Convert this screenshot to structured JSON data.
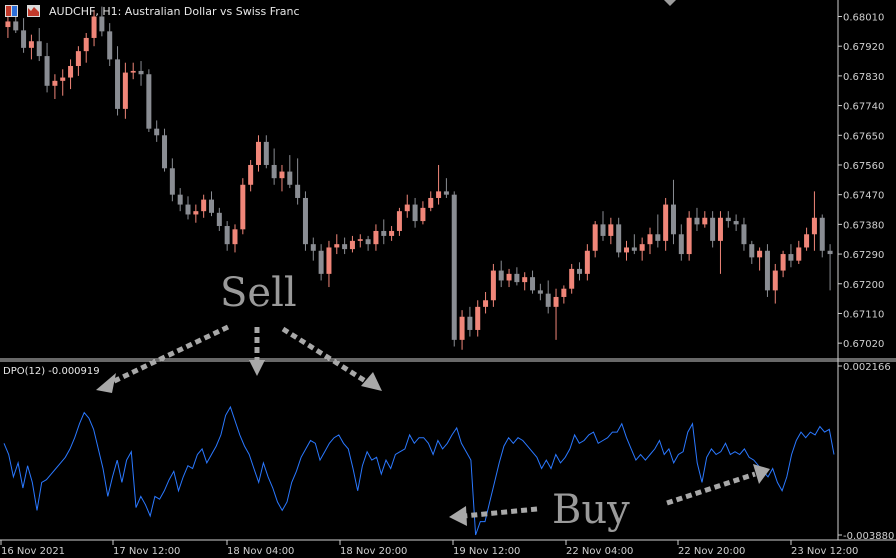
{
  "chart_title": "AUDCHF, H1:  Australian Dollar vs Swiss  Franc",
  "indicator_label": "DPO(12) -0.000919",
  "icons": [
    "one-click-trading-icon",
    "market-watch-icon",
    "arrow-down-icon"
  ],
  "colors": {
    "background": "#000000",
    "bull": "#f08679",
    "bear": "#8a8d93",
    "dpo_line": "#2a78ff",
    "axis": "#c9c9c9",
    "annotation": "#a8a8a8"
  },
  "annotations": {
    "sell": "Sell",
    "buy": "Buy"
  },
  "chart_data": [
    {
      "type": "candlestick",
      "symbol": "AUDCHF",
      "timeframe": "H1",
      "yticks": [
        "0.68010",
        "0.67920",
        "0.67830",
        "0.67740",
        "0.67650",
        "0.67560",
        "0.67470",
        "0.67380",
        "0.67290",
        "0.67200",
        "0.67110",
        "0.67020"
      ],
      "ylim": [
        0.66975,
        0.6806
      ],
      "bull_color": "#f08679",
      "bear_color": "#8a8d93",
      "candles": [
        [
          0.67978,
          0.68018,
          0.67945,
          0.67995
        ],
        [
          0.67995,
          0.68035,
          0.6796,
          0.67968
        ],
        [
          0.67968,
          0.68005,
          0.679,
          0.67915
        ],
        [
          0.67915,
          0.67955,
          0.6788,
          0.67935
        ],
        [
          0.67935,
          0.67975,
          0.67875,
          0.6789
        ],
        [
          0.6789,
          0.6793,
          0.6778,
          0.678
        ],
        [
          0.678,
          0.67835,
          0.6776,
          0.67815
        ],
        [
          0.67815,
          0.6785,
          0.6777,
          0.67825
        ],
        [
          0.67825,
          0.6788,
          0.6779,
          0.6786
        ],
        [
          0.6786,
          0.6792,
          0.6783,
          0.67905
        ],
        [
          0.67905,
          0.6796,
          0.6787,
          0.67945
        ],
        [
          0.67945,
          0.6803,
          0.6792,
          0.6801
        ],
        [
          0.6801,
          0.6804,
          0.6795,
          0.67965
        ],
        [
          0.67965,
          0.6799,
          0.6786,
          0.6788
        ],
        [
          0.6788,
          0.6792,
          0.6771,
          0.6773
        ],
        [
          0.6773,
          0.6787,
          0.677,
          0.6784
        ],
        [
          0.6784,
          0.6787,
          0.6782,
          0.67845
        ],
        [
          0.67845,
          0.67875,
          0.678,
          0.67835
        ],
        [
          0.67835,
          0.6785,
          0.6766,
          0.6767
        ],
        [
          0.6767,
          0.67695,
          0.6763,
          0.6765
        ],
        [
          0.6765,
          0.6767,
          0.6754,
          0.6755
        ],
        [
          0.6755,
          0.6758,
          0.6745,
          0.6747
        ],
        [
          0.6747,
          0.6749,
          0.6742,
          0.6744
        ],
        [
          0.6744,
          0.67465,
          0.67395,
          0.6741
        ],
        [
          0.6741,
          0.6744,
          0.67385,
          0.6742
        ],
        [
          0.6742,
          0.6747,
          0.674,
          0.67455
        ],
        [
          0.67455,
          0.6748,
          0.67405,
          0.67415
        ],
        [
          0.67415,
          0.6743,
          0.6736,
          0.67375
        ],
        [
          0.67375,
          0.6739,
          0.673,
          0.6732
        ],
        [
          0.6732,
          0.6738,
          0.67295,
          0.67365
        ],
        [
          0.67365,
          0.6752,
          0.6735,
          0.675
        ],
        [
          0.675,
          0.67575,
          0.6748,
          0.6756
        ],
        [
          0.6756,
          0.6765,
          0.6754,
          0.6763
        ],
        [
          0.6763,
          0.6765,
          0.6755,
          0.6756
        ],
        [
          0.6756,
          0.6761,
          0.675,
          0.6752
        ],
        [
          0.6752,
          0.6756,
          0.6748,
          0.6754
        ],
        [
          0.6754,
          0.6759,
          0.6749,
          0.675
        ],
        [
          0.675,
          0.6758,
          0.6744,
          0.6746
        ],
        [
          0.6746,
          0.6748,
          0.673,
          0.6732
        ],
        [
          0.6732,
          0.6734,
          0.6727,
          0.673
        ],
        [
          0.673,
          0.6732,
          0.6721,
          0.6723
        ],
        [
          0.6723,
          0.6733,
          0.6719,
          0.6731
        ],
        [
          0.6731,
          0.6735,
          0.6729,
          0.6732
        ],
        [
          0.6732,
          0.6734,
          0.6729,
          0.67305
        ],
        [
          0.67305,
          0.67345,
          0.67295,
          0.6733
        ],
        [
          0.6733,
          0.6735,
          0.6731,
          0.67335
        ],
        [
          0.67335,
          0.67345,
          0.673,
          0.6732
        ],
        [
          0.6732,
          0.6738,
          0.673,
          0.6736
        ],
        [
          0.6736,
          0.67395,
          0.6732,
          0.67345
        ],
        [
          0.67345,
          0.67375,
          0.6733,
          0.6736
        ],
        [
          0.6736,
          0.6743,
          0.67345,
          0.6742
        ],
        [
          0.6742,
          0.6747,
          0.674,
          0.6744
        ],
        [
          0.6744,
          0.6746,
          0.6737,
          0.6739
        ],
        [
          0.6739,
          0.6745,
          0.6738,
          0.6743
        ],
        [
          0.6743,
          0.6748,
          0.6742,
          0.6746
        ],
        [
          0.6746,
          0.6756,
          0.6744,
          0.6748
        ],
        [
          0.6748,
          0.6752,
          0.6746,
          0.6747
        ],
        [
          0.6747,
          0.6748,
          0.6701,
          0.6703
        ],
        [
          0.6703,
          0.6712,
          0.67,
          0.671
        ],
        [
          0.671,
          0.6713,
          0.6704,
          0.6706
        ],
        [
          0.6706,
          0.6715,
          0.6704,
          0.6713
        ],
        [
          0.6713,
          0.67175,
          0.6711,
          0.6715
        ],
        [
          0.6715,
          0.6726,
          0.6713,
          0.6724
        ],
        [
          0.6724,
          0.6727,
          0.6719,
          0.6721
        ],
        [
          0.6721,
          0.67245,
          0.6719,
          0.6723
        ],
        [
          0.6723,
          0.6725,
          0.67195,
          0.67205
        ],
        [
          0.67205,
          0.67235,
          0.6718,
          0.6722
        ],
        [
          0.6722,
          0.6724,
          0.6717,
          0.6718
        ],
        [
          0.6718,
          0.672,
          0.6715,
          0.6717
        ],
        [
          0.6717,
          0.6721,
          0.6711,
          0.6713
        ],
        [
          0.6713,
          0.67185,
          0.6703,
          0.6716
        ],
        [
          0.6716,
          0.67195,
          0.6714,
          0.67185
        ],
        [
          0.67185,
          0.6726,
          0.6717,
          0.67245
        ],
        [
          0.67245,
          0.67265,
          0.6721,
          0.6723
        ],
        [
          0.6723,
          0.6732,
          0.6721,
          0.673
        ],
        [
          0.673,
          0.6739,
          0.6728,
          0.6738
        ],
        [
          0.6738,
          0.6742,
          0.6733,
          0.67345
        ],
        [
          0.67345,
          0.674,
          0.6732,
          0.6738
        ],
        [
          0.6738,
          0.674,
          0.6728,
          0.67295
        ],
        [
          0.67295,
          0.6733,
          0.6727,
          0.6731
        ],
        [
          0.6731,
          0.6735,
          0.6729,
          0.673
        ],
        [
          0.673,
          0.6734,
          0.6727,
          0.6732
        ],
        [
          0.6732,
          0.6737,
          0.6729,
          0.6735
        ],
        [
          0.6735,
          0.6741,
          0.6731,
          0.6733
        ],
        [
          0.6733,
          0.6746,
          0.673,
          0.6744
        ],
        [
          0.6744,
          0.67515,
          0.6732,
          0.6735
        ],
        [
          0.6735,
          0.6738,
          0.6727,
          0.6729
        ],
        [
          0.6729,
          0.6742,
          0.6727,
          0.674
        ],
        [
          0.674,
          0.6743,
          0.6736,
          0.6738
        ],
        [
          0.6738,
          0.6742,
          0.6737,
          0.674
        ],
        [
          0.674,
          0.6742,
          0.6731,
          0.6733
        ],
        [
          0.6733,
          0.6742,
          0.6723,
          0.674
        ],
        [
          0.674,
          0.6742,
          0.6737,
          0.6739
        ],
        [
          0.6739,
          0.6741,
          0.6736,
          0.6738
        ],
        [
          0.6738,
          0.674,
          0.673,
          0.6732
        ],
        [
          0.6732,
          0.6733,
          0.6726,
          0.6728
        ],
        [
          0.6728,
          0.6731,
          0.6724,
          0.673
        ],
        [
          0.673,
          0.6732,
          0.6716,
          0.6718
        ],
        [
          0.6718,
          0.6726,
          0.6714,
          0.6724
        ],
        [
          0.6724,
          0.673,
          0.6722,
          0.6729
        ],
        [
          0.6729,
          0.6732,
          0.6725,
          0.6727
        ],
        [
          0.6727,
          0.6733,
          0.6726,
          0.6731
        ],
        [
          0.6731,
          0.6737,
          0.673,
          0.6735
        ],
        [
          0.6735,
          0.6748,
          0.673,
          0.674
        ],
        [
          0.674,
          0.6741,
          0.6728,
          0.673
        ],
        [
          0.673,
          0.6732,
          0.6718,
          0.6729
        ]
      ]
    },
    {
      "type": "line",
      "name": "DPO(12)",
      "yticks": [
        "0.002166",
        "-0.003880"
      ],
      "ylim": [
        -0.00388,
        0.002166
      ],
      "xticks": [
        "16 Nov 2021",
        "17 Nov 12:00",
        "18 Nov 04:00",
        "18 Nov 20:00",
        "19 Nov 12:00",
        "22 Nov 04:00",
        "22 Nov 20:00",
        "23 Nov 12:00"
      ],
      "values": [
        -0.0006,
        -0.001,
        -0.0018,
        -0.0013,
        -0.0022,
        -0.0014,
        -0.002,
        -0.003,
        -0.002,
        -0.0019,
        -0.0017,
        -0.0015,
        -0.0013,
        -0.0011,
        -0.0008,
        -0.0004,
        0.0001,
        0.0005,
        0.0003,
        -0.0001,
        -0.0008,
        -0.0015,
        -0.0025,
        -0.0018,
        -0.0012,
        -0.002,
        -0.0012,
        -0.0009,
        -0.0029,
        -0.0025,
        -0.0028,
        -0.0032,
        -0.0025,
        -0.0026,
        -0.0023,
        -0.0019,
        -0.0016,
        -0.0023,
        -0.0018,
        -0.0014,
        -0.0015,
        -0.001,
        -0.0008,
        -0.0013,
        -0.001,
        -0.0007,
        -0.0003,
        0.0004,
        0.0007,
        0.0002,
        -0.0003,
        -0.0007,
        -0.001,
        -0.0015,
        -0.002,
        -0.0013,
        -0.0018,
        -0.0022,
        -0.0027,
        -0.003,
        -0.0027,
        -0.002,
        -0.0016,
        -0.0011,
        -0.0008,
        -0.0005,
        -0.0006,
        -0.0012,
        -0.0009,
        -0.0006,
        -0.0004,
        -0.0003,
        -0.0006,
        -0.0008,
        -0.0015,
        -0.0023,
        -0.0014,
        -0.0009,
        -0.0012,
        -0.0011,
        -0.0017,
        -0.0012,
        -0.0015,
        -0.001,
        -0.0009,
        -0.0008,
        -0.0003,
        -0.0006,
        -0.0004,
        -0.0004,
        -0.0006,
        -0.001,
        -0.0005,
        -0.0008,
        -0.0006,
        -0.0003,
        -5e-05,
        -0.0006,
        -0.0009,
        -0.0012,
        -0.00388,
        -0.0034,
        -0.0034,
        -0.0027,
        -0.002,
        -0.0013,
        -0.0007,
        -0.0004,
        -0.0006,
        -0.0004,
        -0.0005,
        -0.0007,
        -0.0009,
        -0.0011,
        -0.0015,
        -0.0012,
        -0.0015,
        -0.001,
        -0.0013,
        -0.0011,
        -0.0008,
        -0.0003,
        -0.0006,
        -0.0005,
        -0.0003,
        -0.0002,
        -0.0006,
        -0.0005,
        -0.0004,
        -0.0002,
        -0.0002,
        0.0001,
        -0.0004,
        -0.0008,
        -0.0012,
        -0.001,
        -0.0012,
        -0.001,
        -0.0008,
        -0.0005,
        -0.001,
        -0.0008,
        -0.0013,
        -0.001,
        -0.0009,
        -0.0002,
        0.0001,
        -0.0013,
        -0.002,
        -0.0011,
        -0.0008,
        -0.001,
        -0.0009,
        -0.0006,
        -0.001,
        -0.0009,
        -0.001,
        -0.0008,
        -0.0011,
        -0.0012,
        -0.0014,
        -0.0016,
        -0.0018,
        -0.0015,
        -0.002,
        -0.0023,
        -0.0018,
        -0.001,
        -0.0005,
        -0.0002,
        -0.0004,
        -0.0002,
        -0.0003,
        0.0,
        -0.0002,
        -0.0001,
        -0.001
      ]
    }
  ]
}
